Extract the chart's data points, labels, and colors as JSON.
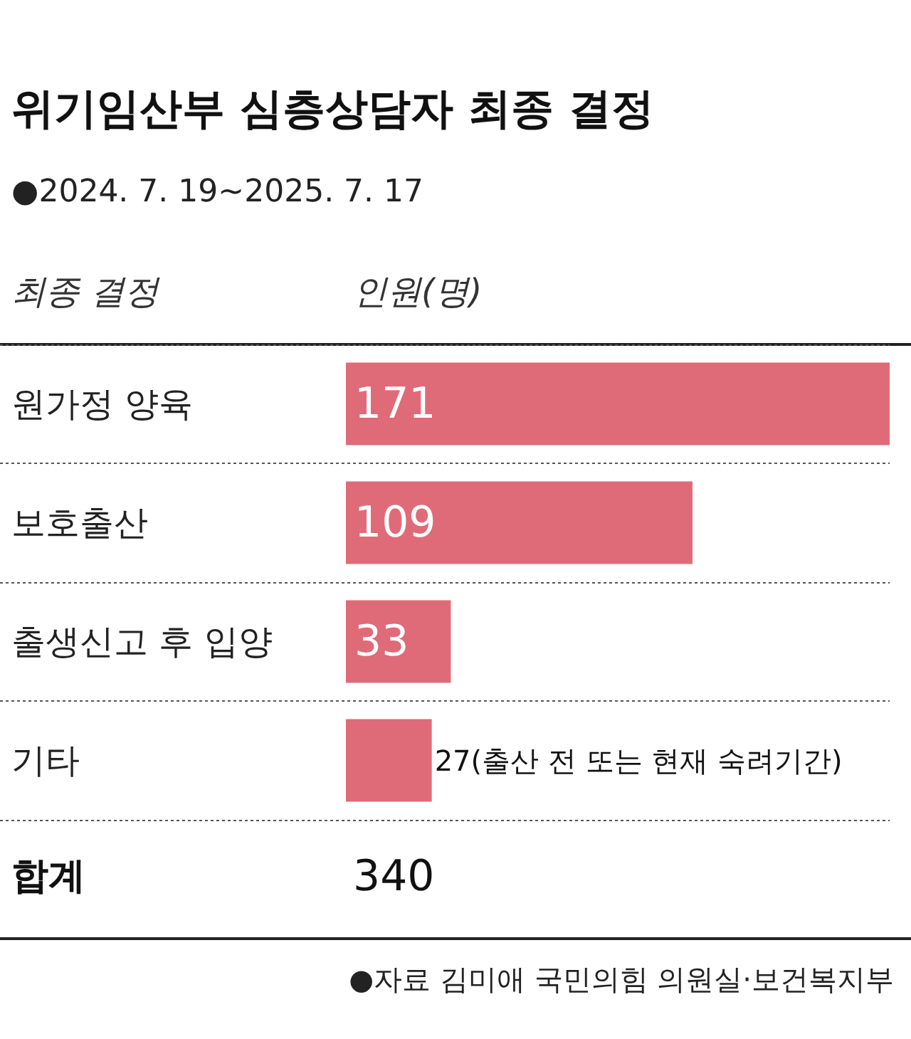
{
  "chart_data": {
    "type": "bar",
    "orientation": "horizontal",
    "title": "위기임산부 심층상담자 최종 결정",
    "subtitle": "●2024. 7. 19~2025. 7. 17",
    "ylabel": "최종 결정",
    "xlabel": "인원(명)",
    "categories": [
      "원가정 양육",
      "보호출산",
      "출생신고 후 입양",
      "기타"
    ],
    "values": [
      171,
      109,
      33,
      27
    ],
    "value_labels": [
      "171",
      "109",
      "33",
      "27(출산 전 또는 현재 숙려기간)"
    ],
    "color": "#e06b78",
    "grid": "y",
    "annotations": [
      "합계",
      "340",
      "●자료 김미애 국민의힘 의원실·보건복지부"
    ]
  }
}
